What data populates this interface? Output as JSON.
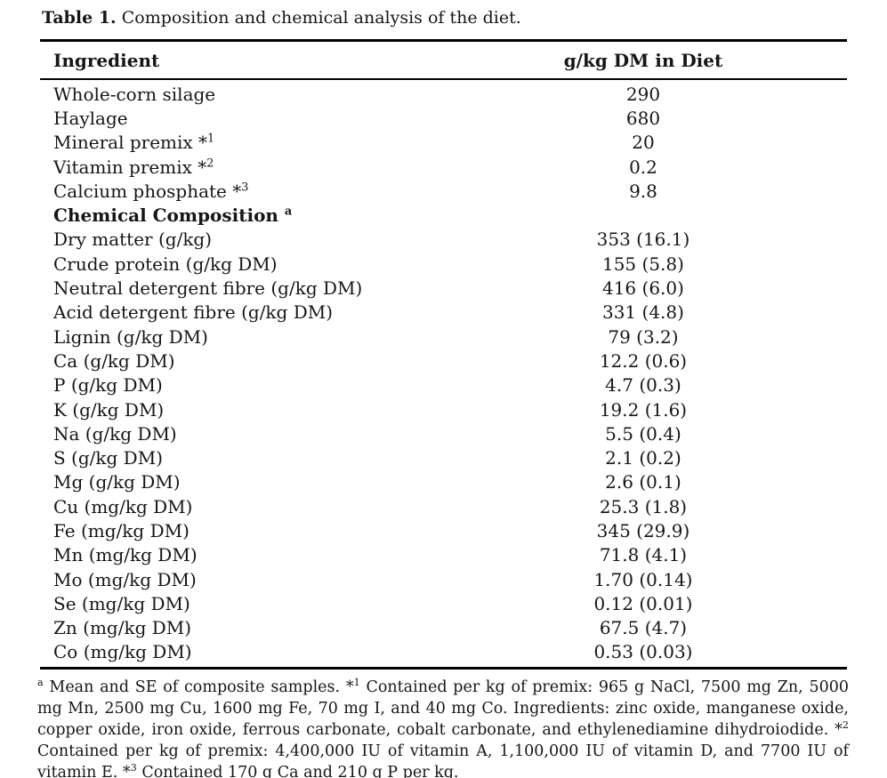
{
  "page": {
    "background_color": "#ffffff",
    "text_color": "#161616"
  },
  "caption": {
    "label": "Table 1.",
    "text": "Composition and chemical analysis of the diet."
  },
  "table": {
    "columns": [
      "Ingredient",
      "g/kg DM in Diet"
    ],
    "rows": [
      {
        "label": "Whole-corn silage",
        "sup": "",
        "value": "290",
        "bold": false
      },
      {
        "label": "Haylage",
        "sup": "",
        "value": "680",
        "bold": false
      },
      {
        "label": "Mineral premix *",
        "sup": "1",
        "value": "20",
        "bold": false
      },
      {
        "label": "Vitamin premix *",
        "sup": "2",
        "value": "0.2",
        "bold": false
      },
      {
        "label": "Calcium phosphate *",
        "sup": "3",
        "value": "9.8",
        "bold": false
      },
      {
        "label": "Chemical Composition ",
        "sup": "a",
        "value": "",
        "bold": true
      },
      {
        "label": "Dry matter (g/kg)",
        "sup": "",
        "value": "353 (16.1)",
        "bold": false
      },
      {
        "label": "Crude protein (g/kg DM)",
        "sup": "",
        "value": "155 (5.8)",
        "bold": false
      },
      {
        "label": "Neutral detergent fibre (g/kg DM)",
        "sup": "",
        "value": "416 (6.0)",
        "bold": false
      },
      {
        "label": "Acid detergent fibre (g/kg DM)",
        "sup": "",
        "value": "331 (4.8)",
        "bold": false
      },
      {
        "label": "Lignin (g/kg DM)",
        "sup": "",
        "value": "79 (3.2)",
        "bold": false
      },
      {
        "label": "Ca (g/kg DM)",
        "sup": "",
        "value": "12.2 (0.6)",
        "bold": false
      },
      {
        "label": "P (g/kg DM)",
        "sup": "",
        "value": "4.7 (0.3)",
        "bold": false
      },
      {
        "label": "K (g/kg DM)",
        "sup": "",
        "value": "19.2 (1.6)",
        "bold": false
      },
      {
        "label": "Na (g/kg DM)",
        "sup": "",
        "value": "5.5 (0.4)",
        "bold": false
      },
      {
        "label": "S (g/kg DM)",
        "sup": "",
        "value": "2.1 (0.2)",
        "bold": false
      },
      {
        "label": "Mg (g/kg DM)",
        "sup": "",
        "value": "2.6 (0.1)",
        "bold": false
      },
      {
        "label": "Cu (mg/kg DM)",
        "sup": "",
        "value": "25.3 (1.8)",
        "bold": false
      },
      {
        "label": "Fe (mg/kg DM)",
        "sup": "",
        "value": "345 (29.9)",
        "bold": false
      },
      {
        "label": "Mn (mg/kg DM)",
        "sup": "",
        "value": "71.8 (4.1)",
        "bold": false
      },
      {
        "label": "Mo (mg/kg DM)",
        "sup": "",
        "value": "1.70 (0.14)",
        "bold": false
      },
      {
        "label": "Se (mg/kg DM)",
        "sup": "",
        "value": "0.12 (0.01)",
        "bold": false
      },
      {
        "label": "Zn (mg/kg DM)",
        "sup": "",
        "value": "67.5 (4.7)",
        "bold": false
      },
      {
        "label": "Co (mg/kg DM)",
        "sup": "",
        "value": "0.53 (0.03)",
        "bold": false
      }
    ]
  },
  "footnote": {
    "segments": [
      {
        "prefix": "",
        "sup": "a",
        "text": "Mean and SE of composite samples."
      },
      {
        "prefix": "*",
        "sup": "1",
        "text": "Contained per kg of premix: 965 g NaCl, 7500 mg Zn, 5000 mg Mn, 2500 mg Cu, 1600 mg Fe, 70 mg I, and 40 mg Co. Ingredients: zinc oxide, manganese oxide, copper oxide, iron oxide, ferrous carbonate, cobalt carbonate, and ethylenediamine dihydroiodide."
      },
      {
        "prefix": "*",
        "sup": "2",
        "text": "Contained per kg of premix: 4,400,000 IU of vitamin A, 1,100,000 IU of vitamin D, and 7700 IU of vitamin E."
      },
      {
        "prefix": "*",
        "sup": "3",
        "text": "Contained 170 g Ca and 210 g P per kg."
      }
    ]
  }
}
